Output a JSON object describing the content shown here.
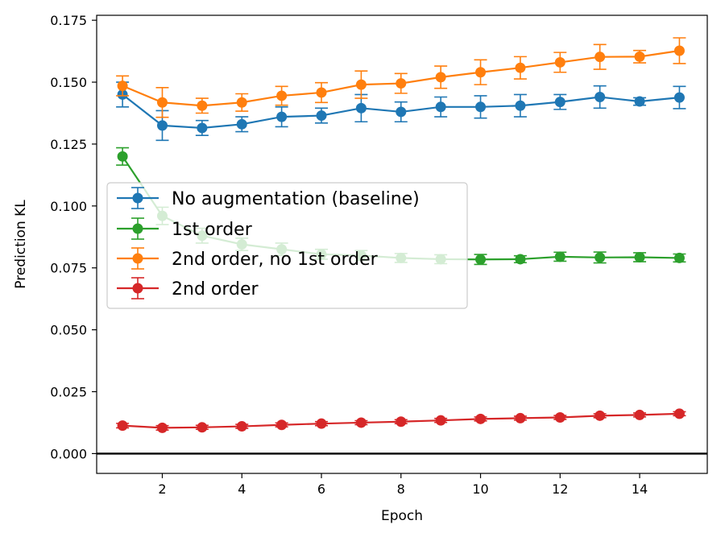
{
  "chart_data": {
    "type": "line",
    "title": "",
    "xlabel": "Epoch",
    "ylabel": "Prediction KL",
    "xlim": [
      0.35,
      15.7
    ],
    "ylim": [
      -0.008,
      0.177
    ],
    "xticks": [
      2,
      4,
      6,
      8,
      10,
      12,
      14
    ],
    "xtick_labels": [
      "2",
      "4",
      "6",
      "8",
      "10",
      "12",
      "14"
    ],
    "yticks": [
      0.0,
      0.025,
      0.05,
      0.075,
      0.1,
      0.125,
      0.15,
      0.175
    ],
    "ytick_labels": [
      "0.000",
      "0.025",
      "0.050",
      "0.075",
      "0.100",
      "0.125",
      "0.150",
      "0.175"
    ],
    "grid": false,
    "legend_position": "center-left",
    "reference_line": {
      "y": 0.0,
      "color": "#000000"
    },
    "x": [
      1,
      2,
      3,
      4,
      5,
      6,
      7,
      8,
      9,
      10,
      11,
      12,
      13,
      14,
      15
    ],
    "series": [
      {
        "name": "No augmentation (baseline)",
        "color": "#1f77b4",
        "values": [
          0.145,
          0.1325,
          0.1315,
          0.133,
          0.136,
          0.1365,
          0.1395,
          0.138,
          0.14,
          0.14,
          0.1405,
          0.142,
          0.144,
          0.1422,
          0.1438
        ],
        "errors": [
          0.005,
          0.006,
          0.003,
          0.003,
          0.004,
          0.003,
          0.0055,
          0.004,
          0.004,
          0.0045,
          0.0045,
          0.003,
          0.0045,
          0.0015,
          0.0045
        ]
      },
      {
        "name": "1st order",
        "color": "#2ca02c",
        "values": [
          0.12,
          0.096,
          0.088,
          0.0845,
          0.0825,
          0.0805,
          0.08,
          0.079,
          0.0785,
          0.0784,
          0.0785,
          0.0795,
          0.0792,
          0.0793,
          0.079
        ],
        "errors": [
          0.0035,
          0.0035,
          0.003,
          0.0025,
          0.0025,
          0.002,
          0.002,
          0.0018,
          0.0018,
          0.002,
          0.0014,
          0.0018,
          0.0022,
          0.0018,
          0.0016
        ]
      },
      {
        "name": "2nd order, no 1st order",
        "color": "#ff7f0e",
        "values": [
          0.1485,
          0.1418,
          0.1405,
          0.1418,
          0.1445,
          0.1458,
          0.149,
          0.1495,
          0.152,
          0.154,
          0.1558,
          0.158,
          0.1602,
          0.1603,
          0.1627
        ],
        "errors": [
          0.004,
          0.006,
          0.003,
          0.0035,
          0.0038,
          0.004,
          0.0055,
          0.004,
          0.0045,
          0.005,
          0.0045,
          0.004,
          0.005,
          0.0025,
          0.0052
        ]
      },
      {
        "name": "2nd order",
        "color": "#d62728",
        "values": [
          0.0113,
          0.0104,
          0.0106,
          0.011,
          0.0116,
          0.0121,
          0.0125,
          0.0129,
          0.0134,
          0.014,
          0.0143,
          0.0146,
          0.0153,
          0.0156,
          0.0161
        ],
        "errors": [
          0.0009,
          0.0009,
          0.0008,
          0.0008,
          0.0008,
          0.0008,
          0.0008,
          0.0008,
          0.0008,
          0.0008,
          0.0008,
          0.0008,
          0.0008,
          0.0008,
          0.0008
        ]
      }
    ],
    "legend_order": [
      0,
      1,
      2,
      3
    ]
  }
}
